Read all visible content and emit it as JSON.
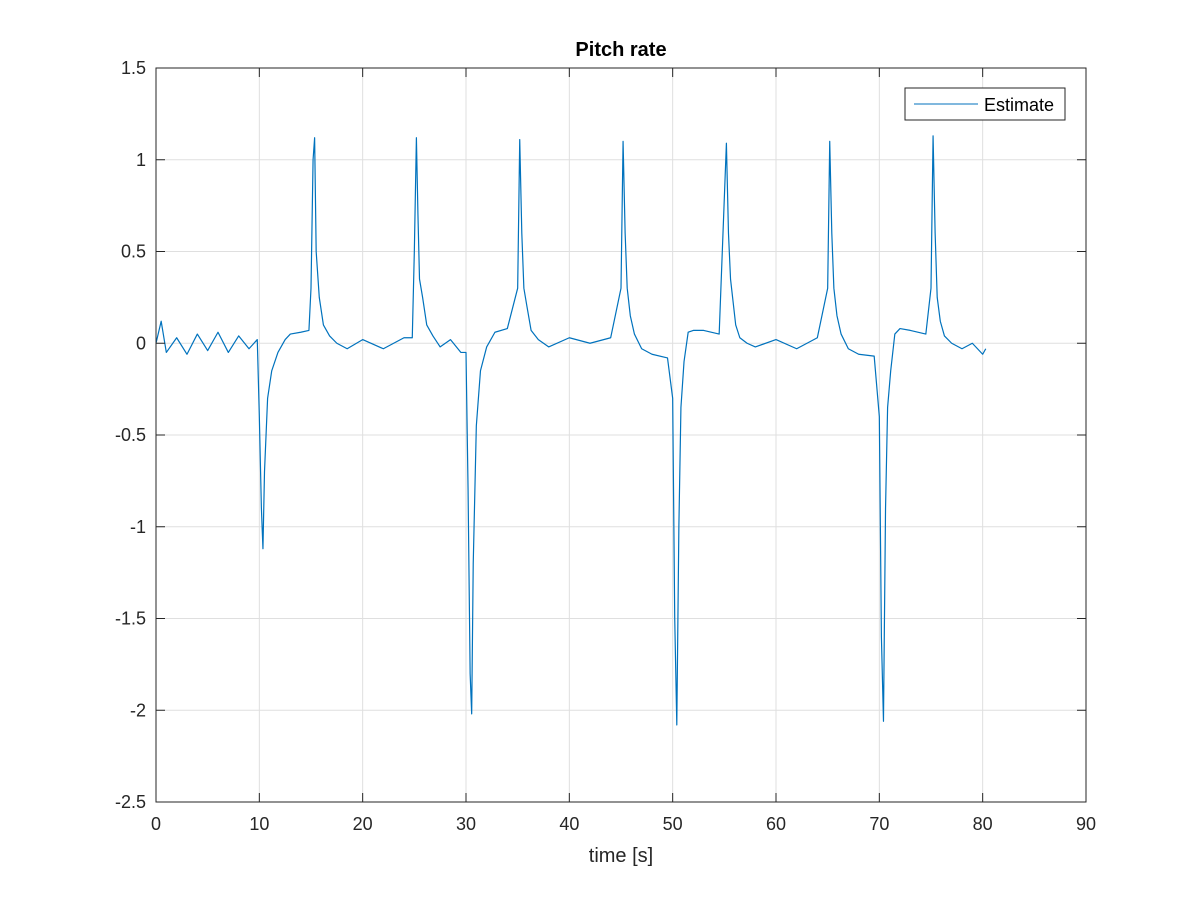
{
  "chart_data": {
    "type": "line",
    "title": "Pitch rate",
    "xlabel": "time [s]",
    "ylabel": "",
    "xlim": [
      0,
      90
    ],
    "ylim": [
      -2.5,
      1.5
    ],
    "xticks": [
      0,
      10,
      20,
      30,
      40,
      50,
      60,
      70,
      80,
      90
    ],
    "yticks": [
      1.5,
      1,
      0.5,
      0,
      -0.5,
      -1,
      -1.5,
      -2,
      -2.5
    ],
    "xtick_labels": [
      "0",
      "10",
      "20",
      "30",
      "40",
      "50",
      "60",
      "70",
      "80",
      "90"
    ],
    "ytick_labels": [
      "1.5",
      "1",
      "0.5",
      "0",
      "-0.5",
      "-1",
      "-1.5",
      "-2",
      "-2.5"
    ],
    "grid": true,
    "legend_position": "top-right",
    "colors": {
      "series": "#0072BD",
      "grid": "#DFDFDF",
      "axis": "#262626"
    },
    "series": [
      {
        "name": "Estimate",
        "x": [
          0,
          0.5,
          1,
          2,
          3,
          4,
          5,
          6,
          7,
          8,
          9,
          9.8,
          10.0,
          10.2,
          10.35,
          10.5,
          10.8,
          11.2,
          11.8,
          12.5,
          13.0,
          14.0,
          14.8,
          15.0,
          15.2,
          15.35,
          15.5,
          15.8,
          16.2,
          16.8,
          17.5,
          18.5,
          20,
          22,
          24,
          24.8,
          25.0,
          25.2,
          25.35,
          25.5,
          25.8,
          26.2,
          26.8,
          27.5,
          28.5,
          29.5,
          30.0,
          30.2,
          30.4,
          30.55,
          30.7,
          31.0,
          31.4,
          32.0,
          32.8,
          34.0,
          35.0,
          35.2,
          35.4,
          35.6,
          35.9,
          36.3,
          37.0,
          38.0,
          40,
          42,
          44,
          45.0,
          45.2,
          45.4,
          45.6,
          45.9,
          46.3,
          47.0,
          48.0,
          49.5,
          50.0,
          50.2,
          50.4,
          50.6,
          50.8,
          51.1,
          51.5,
          52.0,
          53.0,
          54.5,
          55.2,
          55.4,
          55.6,
          55.8,
          56.1,
          56.5,
          57.2,
          58,
          60,
          62,
          64,
          65.0,
          65.2,
          65.4,
          65.6,
          65.9,
          66.3,
          67.0,
          68.0,
          69.5,
          70.0,
          70.2,
          70.4,
          70.6,
          70.8,
          71.1,
          71.5,
          72.0,
          73.0,
          74.5,
          75.0,
          75.2,
          75.4,
          75.6,
          75.9,
          76.3,
          77.0,
          78.0,
          79.0,
          80.0,
          80.3
        ],
        "y": [
          0,
          0.12,
          -0.05,
          0.03,
          -0.06,
          0.05,
          -0.04,
          0.06,
          -0.05,
          0.04,
          -0.03,
          0.02,
          -0.4,
          -0.9,
          -1.12,
          -0.7,
          -0.3,
          -0.15,
          -0.05,
          0.02,
          0.05,
          0.06,
          0.07,
          0.3,
          1.0,
          1.12,
          0.5,
          0.25,
          0.1,
          0.04,
          0.0,
          -0.03,
          0.02,
          -0.03,
          0.03,
          0.03,
          0.5,
          1.12,
          0.7,
          0.35,
          0.25,
          0.1,
          0.04,
          -0.02,
          0.02,
          -0.05,
          -0.05,
          -0.8,
          -1.8,
          -2.02,
          -1.2,
          -0.45,
          -0.15,
          -0.02,
          0.06,
          0.08,
          0.3,
          1.11,
          0.6,
          0.3,
          0.2,
          0.07,
          0.02,
          -0.02,
          0.03,
          0.0,
          0.03,
          0.3,
          1.1,
          0.6,
          0.3,
          0.15,
          0.05,
          -0.03,
          -0.06,
          -0.08,
          -0.3,
          -1.5,
          -2.08,
          -1.0,
          -0.35,
          -0.1,
          0.06,
          0.07,
          0.07,
          0.05,
          1.09,
          0.6,
          0.35,
          0.25,
          0.1,
          0.03,
          0.0,
          -0.02,
          0.02,
          -0.03,
          0.03,
          0.3,
          1.1,
          0.6,
          0.3,
          0.15,
          0.05,
          -0.03,
          -0.06,
          -0.07,
          -0.4,
          -1.6,
          -2.06,
          -0.9,
          -0.35,
          -0.15,
          0.05,
          0.08,
          0.07,
          0.05,
          0.3,
          1.13,
          0.6,
          0.25,
          0.12,
          0.04,
          0.0,
          -0.03,
          0.0,
          -0.06,
          -0.03
        ]
      }
    ]
  }
}
